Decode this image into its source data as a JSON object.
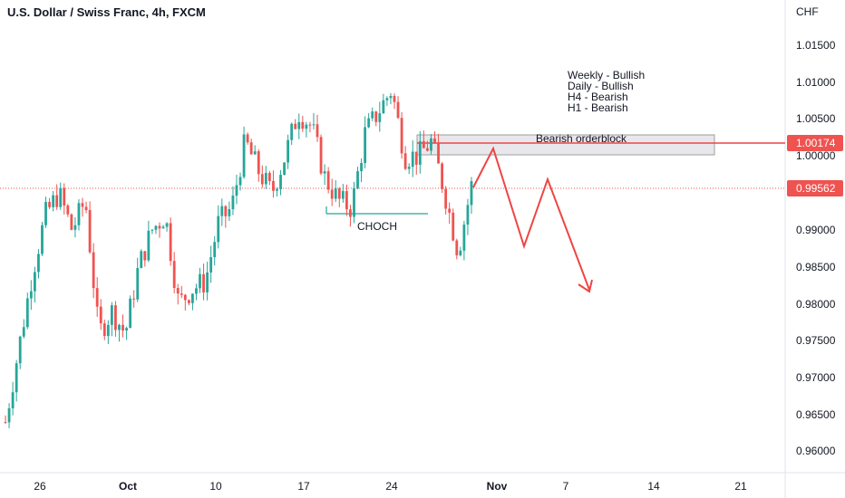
{
  "header": {
    "title": "U.S. Dollar / Swiss Franc, 4h, FXCM"
  },
  "axis": {
    "currency": "CHF",
    "price_ticks": [
      "1.01500",
      "1.01000",
      "1.00500",
      "1.00000",
      "0.99000",
      "0.98500",
      "0.98000",
      "0.97500",
      "0.97000",
      "0.96500",
      "0.96000"
    ],
    "time_ticks": [
      "26",
      "Oct",
      "10",
      "17",
      "24",
      "Nov",
      "7",
      "14",
      "21"
    ]
  },
  "colors": {
    "up": "#26a69a",
    "down": "#ef5350",
    "annotation": "#ef4444",
    "choch_line": "#26a69a",
    "orderblock_fill": "#e8e8ec",
    "orderblock_border": "#9e9e9e"
  },
  "price_labels": {
    "level": "1.00174",
    "current": "0.99562"
  },
  "annotations": {
    "bias": [
      "Weekly - Bullish",
      "Daily - Bullish",
      "H4 - Bearish",
      "H1 - Bearish"
    ],
    "orderblock": "Bearish orderblock",
    "choch": "CHOCH"
  },
  "chart_data": {
    "type": "candlestick",
    "title": "U.S. Dollar / Swiss Franc, 4h, FXCM",
    "ylabel": "CHF",
    "ylim": [
      0.9575,
      1.0185
    ],
    "key_levels": {
      "orderblock": [
        1.0002,
        1.003
      ],
      "level": 1.00174,
      "current": 0.99562,
      "choch": 0.992
    },
    "projection": [
      {
        "date": "Oct 29",
        "price": 0.9957
      },
      {
        "date": "Oct 31",
        "price": 1.001
      },
      {
        "date": "Nov 3",
        "price": 0.9876
      },
      {
        "date": "Nov 5",
        "price": 0.9967
      },
      {
        "date": "Nov 8",
        "price": 0.9815
      }
    ],
    "path": [
      {
        "date": "Sep 20",
        "price": 0.964
      },
      {
        "date": "Sep 21",
        "price": 0.974
      },
      {
        "date": "Sep 23",
        "price": 0.984
      },
      {
        "date": "Sep 26",
        "price": 0.992
      },
      {
        "date": "Sep 27",
        "price": 0.995
      },
      {
        "date": "Sep 28",
        "price": 0.99
      },
      {
        "date": "Sep 29",
        "price": 0.994
      },
      {
        "date": "Sep 30",
        "price": 0.976
      },
      {
        "date": "Oct 1",
        "price": 0.979
      },
      {
        "date": "Oct 2",
        "price": 0.976
      },
      {
        "date": "Oct 3",
        "price": 0.985
      },
      {
        "date": "Oct 4",
        "price": 0.99
      },
      {
        "date": "Oct 5",
        "price": 0.992
      },
      {
        "date": "Oct 6",
        "price": 0.98
      },
      {
        "date": "Oct 7",
        "price": 0.982
      },
      {
        "date": "Oct 8",
        "price": 0.983
      },
      {
        "date": "Oct 9",
        "price": 0.991
      },
      {
        "date": "Oct 10",
        "price": 0.993
      },
      {
        "date": "Oct 12",
        "price": 1.002
      },
      {
        "date": "Oct 13",
        "price": 0.998
      },
      {
        "date": "Oct 14",
        "price": 0.995
      },
      {
        "date": "Oct 15",
        "price": 1.0
      },
      {
        "date": "Oct 16",
        "price": 1.006
      },
      {
        "date": "Oct 17",
        "price": 1.004
      },
      {
        "date": "Oct 18",
        "price": 0.997
      },
      {
        "date": "Oct 19",
        "price": 0.994
      },
      {
        "date": "Oct 20",
        "price": 0.993
      },
      {
        "date": "Oct 21",
        "price": 1.003
      },
      {
        "date": "Oct 22",
        "price": 1.006
      },
      {
        "date": "Oct 23",
        "price": 1.009
      },
      {
        "date": "Oct 24",
        "price": 1.0
      },
      {
        "date": "Oct 25",
        "price": 1.0
      },
      {
        "date": "Oct 26",
        "price": 1.002
      },
      {
        "date": "Oct 27",
        "price": 0.995
      },
      {
        "date": "Oct 28",
        "price": 0.987
      },
      {
        "date": "Oct 29",
        "price": 0.996
      }
    ]
  }
}
